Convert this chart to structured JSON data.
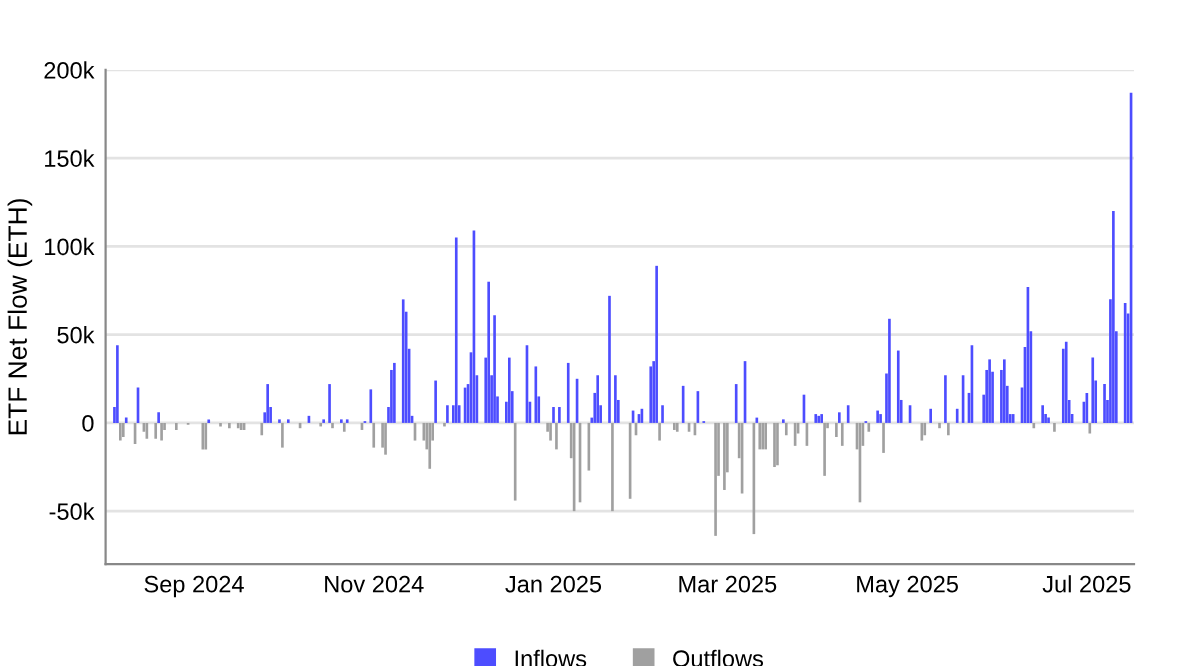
{
  "chart_data": {
    "type": "bar",
    "ylabel": "ETF Net Flow (ETH)",
    "legend": "bottom",
    "grid": "y",
    "xlim": [
      "2024-08-02",
      "2025-07-17"
    ],
    "xticks": [
      {
        "value": "2024-09-01",
        "label": "Sep 2024"
      },
      {
        "value": "2024-11-01",
        "label": "Nov 2024"
      },
      {
        "value": "2025-01-01",
        "label": "Jan 2025"
      },
      {
        "value": "2025-03-01",
        "label": "Mar 2025"
      },
      {
        "value": "2025-05-01",
        "label": "May 2025"
      },
      {
        "value": "2025-07-01",
        "label": "Jul 2025"
      }
    ],
    "ylim": [
      -80000,
      200000
    ],
    "yticks": [
      {
        "value": -50000,
        "label": "-50k"
      },
      0,
      {
        "value": 50000,
        "label": "50k"
      },
      {
        "value": 100000,
        "label": "100k"
      },
      {
        "value": 150000,
        "label": "150k"
      },
      {
        "value": 200000,
        "label": "200k"
      }
    ],
    "series": [
      {
        "name": "Inflows",
        "color": "#4d4dff",
        "x": [
          "2024-08-05",
          "2024-08-06",
          "2024-08-09",
          "2024-08-13",
          "2024-08-20",
          "2024-09-06",
          "2024-09-25",
          "2024-09-26",
          "2024-09-27",
          "2024-09-30",
          "2024-10-03",
          "2024-10-10",
          "2024-10-15",
          "2024-10-17",
          "2024-10-21",
          "2024-10-23",
          "2024-10-29",
          "2024-10-31",
          "2024-11-06",
          "2024-11-07",
          "2024-11-08",
          "2024-11-11",
          "2024-11-12",
          "2024-11-13",
          "2024-11-14",
          "2024-11-22",
          "2024-11-26",
          "2024-11-28",
          "2024-11-29",
          "2024-11-30",
          "2024-12-02",
          "2024-12-03",
          "2024-12-04",
          "2024-12-05",
          "2024-12-06",
          "2024-12-09",
          "2024-12-10",
          "2024-12-11",
          "2024-12-12",
          "2024-12-13",
          "2024-12-16",
          "2024-12-17",
          "2024-12-18",
          "2024-12-23",
          "2024-12-24",
          "2024-12-26",
          "2024-12-27",
          "2025-01-01",
          "2025-01-03",
          "2025-01-06",
          "2025-01-09",
          "2025-01-14",
          "2025-01-15",
          "2025-01-16",
          "2025-01-17",
          "2025-01-20",
          "2025-01-22",
          "2025-01-23",
          "2025-01-28",
          "2025-01-30",
          "2025-01-31",
          "2025-02-03",
          "2025-02-04",
          "2025-02-05",
          "2025-02-07",
          "2025-02-14",
          "2025-02-19",
          "2025-02-21",
          "2025-03-04",
          "2025-03-07",
          "2025-03-11",
          "2025-03-20",
          "2025-03-27",
          "2025-03-31",
          "2025-04-01",
          "2025-04-02",
          "2025-04-08",
          "2025-04-11",
          "2025-04-17",
          "2025-04-21",
          "2025-04-22",
          "2025-04-24",
          "2025-04-25",
          "2025-04-28",
          "2025-04-29",
          "2025-05-02",
          "2025-05-09",
          "2025-05-14",
          "2025-05-18",
          "2025-05-20",
          "2025-05-22",
          "2025-05-23",
          "2025-05-27",
          "2025-05-28",
          "2025-05-29",
          "2025-05-30",
          "2025-06-02",
          "2025-06-03",
          "2025-06-04",
          "2025-06-05",
          "2025-06-06",
          "2025-06-09",
          "2025-06-10",
          "2025-06-11",
          "2025-06-12",
          "2025-06-16",
          "2025-06-17",
          "2025-06-18",
          "2025-06-23",
          "2025-06-24",
          "2025-06-25",
          "2025-06-26",
          "2025-06-30",
          "2025-07-01",
          "2025-07-03",
          "2025-07-04",
          "2025-07-07",
          "2025-07-08",
          "2025-07-09",
          "2025-07-10",
          "2025-07-11",
          "2025-07-14",
          "2025-07-15",
          "2025-07-16"
        ],
        "values": [
          9000,
          44000,
          3000,
          20000,
          6000,
          2000,
          6000,
          22000,
          9000,
          2000,
          2000,
          4000,
          2000,
          22000,
          2000,
          2000,
          1000,
          19000,
          9000,
          30000,
          34000,
          70000,
          63000,
          42000,
          4000,
          24000,
          10000,
          10000,
          105000,
          10000,
          20000,
          22000,
          40000,
          109000,
          27000,
          37000,
          80000,
          27000,
          61000,
          15000,
          12000,
          37000,
          18000,
          44000,
          12000,
          32000,
          15000,
          9000,
          9000,
          34000,
          25000,
          3000,
          17000,
          27000,
          10000,
          72000,
          27000,
          13000,
          7000,
          5000,
          8000,
          32000,
          35000,
          89000,
          10000,
          21000,
          18000,
          1000,
          22000,
          35000,
          3000,
          2000,
          16000,
          5000,
          4000,
          5000,
          6000,
          10000,
          1000,
          7000,
          5000,
          28000,
          59000,
          41000,
          13000,
          10000,
          8000,
          27000,
          8000,
          27000,
          17000,
          44000,
          16000,
          30000,
          36000,
          29000,
          30000,
          36000,
          21000,
          5000,
          5000,
          20000,
          43000,
          77000,
          52000,
          10000,
          5000,
          3000,
          42000,
          46000,
          13000,
          5000,
          12000,
          17000,
          37000,
          24000,
          22000,
          13000,
          70000,
          120000,
          52000,
          68000,
          62000,
          187000
        ]
      },
      {
        "name": "Outflows",
        "color": "#a0a0a0",
        "x": [
          "2024-08-07",
          "2024-08-08",
          "2024-08-12",
          "2024-08-15",
          "2024-08-16",
          "2024-08-19",
          "2024-08-21",
          "2024-08-22",
          "2024-08-26",
          "2024-08-30",
          "2024-09-04",
          "2024-09-05",
          "2024-09-10",
          "2024-09-13",
          "2024-09-16",
          "2024-09-17",
          "2024-09-18",
          "2024-09-24",
          "2024-10-01",
          "2024-10-07",
          "2024-10-14",
          "2024-10-18",
          "2024-10-22",
          "2024-10-28",
          "2024-11-01",
          "2024-11-04",
          "2024-11-05",
          "2024-11-15",
          "2024-11-18",
          "2024-11-19",
          "2024-11-20",
          "2024-11-21",
          "2024-11-25",
          "2024-12-19",
          "2024-12-30",
          "2024-12-31",
          "2025-01-02",
          "2025-01-07",
          "2025-01-08",
          "2025-01-10",
          "2025-01-13",
          "2025-01-21",
          "2025-01-27",
          "2025-01-29",
          "2025-02-06",
          "2025-02-11",
          "2025-02-12",
          "2025-02-16",
          "2025-02-18",
          "2025-02-25",
          "2025-02-26",
          "2025-02-28",
          "2025-03-01",
          "2025-03-05",
          "2025-03-06",
          "2025-03-10",
          "2025-03-12",
          "2025-03-13",
          "2025-03-14",
          "2025-03-17",
          "2025-03-18",
          "2025-03-21",
          "2025-03-24",
          "2025-03-25",
          "2025-03-28",
          "2025-04-03",
          "2025-04-04",
          "2025-04-07",
          "2025-04-09",
          "2025-04-14",
          "2025-04-15",
          "2025-04-16",
          "2025-04-18",
          "2025-04-23",
          "2025-05-06",
          "2025-05-07",
          "2025-05-12",
          "2025-05-15",
          "2025-06-13",
          "2025-06-20",
          "2025-07-02"
        ],
        "values": [
          -10000,
          -8000,
          -12000,
          -5000,
          -9000,
          -9000,
          -10000,
          -4000,
          -4000,
          -1000,
          -15000,
          -15000,
          -2000,
          -3000,
          -3000,
          -4000,
          -4000,
          -7000,
          -14000,
          -3000,
          -2000,
          -3000,
          -5000,
          -4000,
          -14000,
          -14000,
          -18000,
          -10000,
          -10000,
          -15000,
          -26000,
          -10000,
          -2000,
          -44000,
          -5000,
          -10000,
          -15000,
          -20000,
          -50000,
          -45000,
          -27000,
          -50000,
          -43000,
          -7000,
          -10000,
          -4000,
          -5000,
          -5000,
          -7000,
          -64000,
          -30000,
          -38000,
          -28000,
          -20000,
          -40000,
          -63000,
          -15000,
          -15000,
          -15000,
          -25000,
          -24000,
          -7000,
          -13000,
          -6000,
          -13000,
          -30000,
          -3000,
          -8000,
          -13000,
          -15000,
          -45000,
          -13000,
          -5000,
          -17000,
          -10000,
          -7000,
          -3000,
          -7000,
          -3000,
          -5000,
          -6000
        ]
      }
    ]
  }
}
